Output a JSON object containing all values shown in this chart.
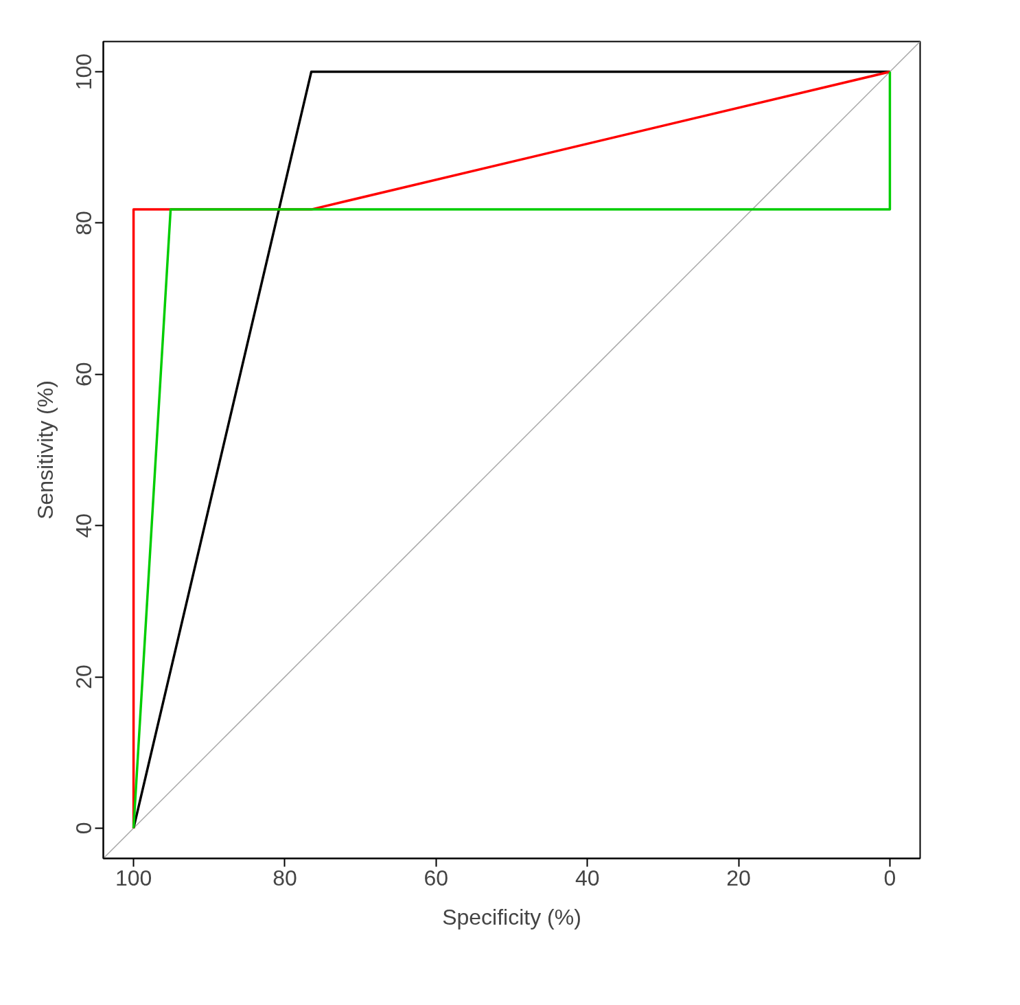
{
  "chart_data": {
    "type": "line",
    "xlabel": "Specificity (%)",
    "ylabel": "Sensitivity (%)",
    "xlim": [
      104,
      -4
    ],
    "ylim": [
      -4,
      104
    ],
    "xticks": [
      100,
      80,
      60,
      40,
      20,
      0
    ],
    "yticks": [
      0,
      20,
      40,
      60,
      80,
      100
    ],
    "grid": false,
    "marker": "none",
    "line_style": "solid",
    "series": [
      {
        "color": "#a6a6a6",
        "x": [
          104,
          -4
        ],
        "values": [
          -4,
          104
        ]
      },
      {
        "color": "#000000",
        "x": [
          100,
          76.5,
          0
        ],
        "values": [
          0,
          100,
          100
        ]
      },
      {
        "color": "#ff0000",
        "x": [
          100,
          100,
          76.5,
          0
        ],
        "values": [
          0,
          81.8,
          81.8,
          100
        ]
      },
      {
        "color": "#00cd00",
        "x": [
          100,
          95.1,
          0,
          0
        ],
        "values": [
          0,
          81.8,
          81.8,
          100
        ]
      }
    ]
  }
}
